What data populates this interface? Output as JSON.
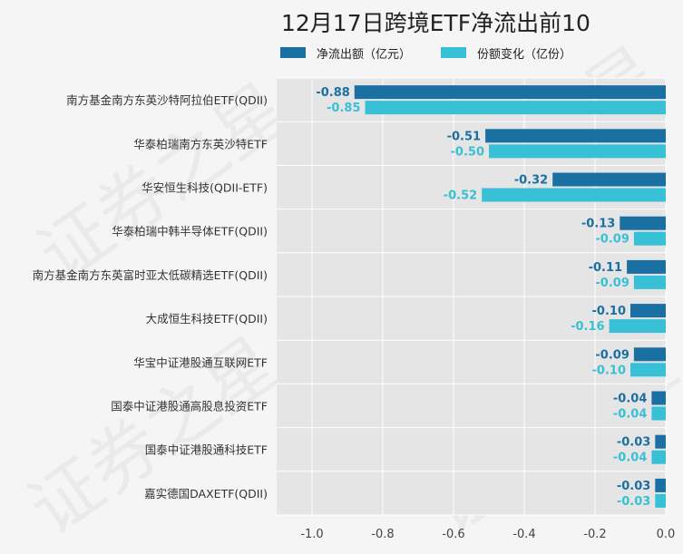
{
  "chart_data": {
    "type": "bar",
    "orientation": "horizontal",
    "title": "12月17日跨境ETF净流出前10",
    "categories": [
      "南方基金南方东英沙特阿拉伯ETF(QDII)",
      "华泰柏瑞南方东英沙特ETF",
      "华安恒生科技(QDII-ETF)",
      "华泰柏瑞中韩半导体ETF(QDII)",
      "南方基金南方东英富时亚太低碳精选ETF(QDII)",
      "大成恒生科技ETF(QDII)",
      "华宝中证港股通互联网ETF",
      "国泰中证港股通高股息投资ETF",
      "国泰中证港股通科技ETF",
      "嘉实德国DAXETF(QDII)"
    ],
    "series": [
      {
        "name": "净流出额（亿元）",
        "color": "#1a6fa3",
        "values": [
          -0.88,
          -0.51,
          -0.32,
          -0.13,
          -0.11,
          -0.1,
          -0.09,
          -0.04,
          -0.03,
          -0.03
        ],
        "labels": [
          "-0.88",
          "-0.51",
          "-0.32",
          "-0.13",
          "-0.11",
          "-0.10",
          "-0.09",
          "-0.04",
          "-0.03",
          "-0.03"
        ]
      },
      {
        "name": "份额变化（亿份）",
        "color": "#38c0d6",
        "values": [
          -0.85,
          -0.5,
          -0.52,
          -0.09,
          -0.09,
          -0.16,
          -0.1,
          -0.04,
          -0.04,
          -0.03
        ],
        "labels": [
          "-0.85",
          "-0.50",
          "-0.52",
          "-0.09",
          "-0.09",
          "-0.16",
          "-0.10",
          "-0.04",
          "-0.04",
          "-0.03"
        ]
      }
    ],
    "xlim": [
      -1.1,
      0.0
    ],
    "xticks": [
      -1.0,
      -0.8,
      -0.6,
      -0.4,
      -0.2,
      0.0
    ],
    "xtick_labels": [
      "-1.0",
      "-0.8",
      "-0.6",
      "-0.4",
      "-0.2",
      "0.0"
    ],
    "grid": true,
    "legend_position": "top",
    "background": "#e5e5e5"
  },
  "watermark_text": "证券之星"
}
